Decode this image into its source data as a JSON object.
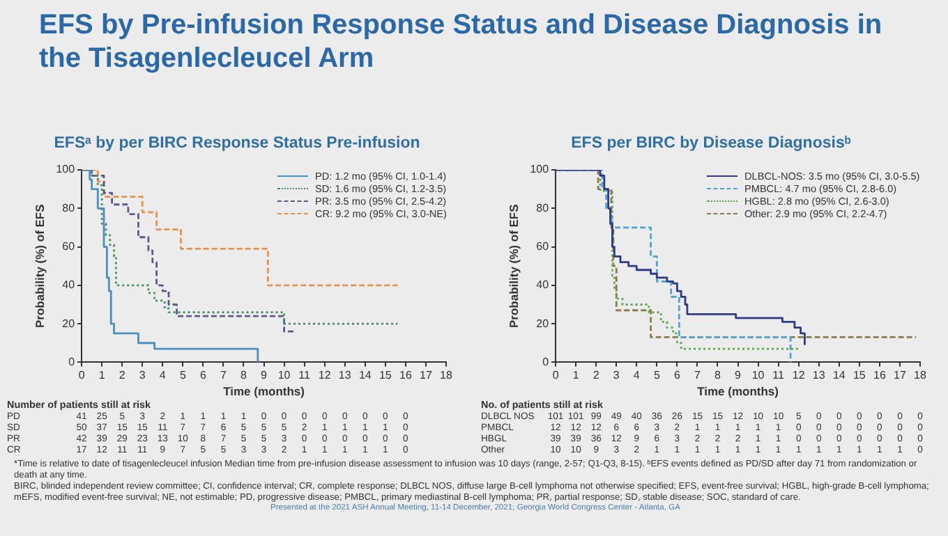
{
  "chart_data": [
    {
      "type": "step",
      "title": "EFS by Pre-infusion Response Status and Disease Diagnosis in the Tisagenlecleucel Arm",
      "subtitle": "EFSᵃ by per BIRC Response Status Pre-infusion",
      "xlabel": "Time (months)",
      "ylabel": "Probability (%) of EFS",
      "xlim": [
        0,
        18
      ],
      "xticks": [
        0,
        1,
        2,
        3,
        4,
        5,
        6,
        7,
        8,
        9,
        10,
        11,
        12,
        13,
        14,
        15,
        16,
        17,
        18
      ],
      "ylim": [
        0,
        100
      ],
      "yticks": [
        0,
        20,
        40,
        60,
        80,
        100
      ],
      "legend": "top right",
      "series": [
        {
          "name": "PD: 1.2 mo (95% CI, 1.0-1.4)",
          "color": "#4a8ec2",
          "line_style": "solid",
          "x": [
            0,
            0.4,
            0.5,
            0.8,
            1.1,
            1.25,
            1.35,
            1.45,
            1.6,
            2.8,
            3.6,
            8.7
          ],
          "values": [
            100,
            95,
            90,
            80,
            60,
            44,
            37,
            20,
            15,
            10,
            7,
            0
          ]
        },
        {
          "name": "SD: 1.6 mo (95% CI, 1.2-3.5)",
          "color": "#3f8f5f",
          "line_style": "dotted",
          "x": [
            0,
            0.5,
            0.8,
            1.0,
            1.2,
            1.4,
            1.6,
            1.7,
            3.3,
            3.6,
            4.1,
            4.3,
            10.0,
            15.6
          ],
          "values": [
            100,
            97,
            92,
            72,
            66,
            61,
            55,
            40,
            36,
            32,
            28,
            26,
            20,
            20
          ]
        },
        {
          "name": "PR: 3.5 mo (95% CI, 2.5-4.2)",
          "color": "#5a5a8a",
          "line_style": "dashed",
          "x": [
            0,
            0.5,
            1.1,
            1.5,
            2.3,
            2.8,
            3.3,
            3.5,
            3.7,
            4.0,
            4.3,
            4.7,
            10.0,
            10.5
          ],
          "values": [
            100,
            97,
            88,
            82,
            77,
            65,
            58,
            52,
            40,
            37,
            30,
            24,
            16,
            16
          ]
        },
        {
          "name": "CR: 9.2 mo (95% CI, 3.0-NE)",
          "color": "#e8914a",
          "line_style": "dashed",
          "x": [
            0,
            0.8,
            1.1,
            3.0,
            3.7,
            4.9,
            9.2,
            15.6
          ],
          "values": [
            100,
            94,
            86,
            78,
            69,
            59,
            40,
            40
          ]
        }
      ],
      "annotations": [
        "Number of patients still at risk",
        "PD 41 25 5 3 2 1 1 1 1 0 0 0 0 0 0 0 0",
        "SD 50 37 15 15 11 7 7 6 5 5 5 2 1 1 1 1 0",
        "PR 42 39 29 23 13 10 8 7 5 5 3 0 0 0 0 0 0",
        "CR 17 12 11 11 9 7 5 5 3 3 2 1 1 1 1 1 0"
      ]
    },
    {
      "type": "step",
      "title": "EFS per BIRC by Disease Diagnosisᵇ",
      "xlabel": "Time (months)",
      "ylabel": "Probability (%) of EFS",
      "xlim": [
        0,
        18
      ],
      "xticks": [
        0,
        1,
        2,
        3,
        4,
        5,
        6,
        7,
        8,
        9,
        10,
        11,
        12,
        13,
        14,
        15,
        16,
        17,
        18
      ],
      "ylim": [
        0,
        100
      ],
      "yticks": [
        0,
        20,
        40,
        60,
        80,
        100
      ],
      "legend": "top right",
      "series": [
        {
          "name": "DLBCL-NOS: 3.5 mo (95% CI, 3.0-5.5)",
          "color": "#2e3a87",
          "line_style": "solid",
          "x": [
            0,
            2.2,
            2.4,
            2.6,
            2.7,
            2.8,
            2.9,
            3.2,
            3.6,
            4.0,
            4.7,
            5.0,
            5.5,
            5.8,
            6.0,
            6.2,
            6.4,
            6.5,
            8.9,
            11.2,
            11.8,
            12.1,
            12.3
          ],
          "values": [
            100,
            97,
            90,
            80,
            72,
            60,
            55,
            52,
            50,
            48,
            46,
            44,
            42,
            41,
            37,
            34,
            30,
            25,
            23,
            21,
            18,
            15,
            9
          ]
        },
        {
          "name": "PMBCL: 4.7 mo (95% CI, 2.8-6.0)",
          "color": "#4fa3d1",
          "line_style": "dashed",
          "x": [
            0,
            2.3,
            2.5,
            2.7,
            2.8,
            4.7,
            5.0,
            5.7,
            6.1,
            11.6
          ],
          "values": [
            100,
            90,
            80,
            75,
            70,
            55,
            42,
            34,
            13,
            0
          ]
        },
        {
          "name": "HGBL: 2.8 mo (95% CI, 2.6-3.0)",
          "color": "#5aa84a",
          "line_style": "dotted",
          "x": [
            0,
            2.2,
            2.8,
            2.9,
            3.0,
            3.3,
            4.6,
            5.2,
            5.5,
            5.8,
            6.0,
            6.2,
            12.1
          ],
          "values": [
            100,
            89,
            45,
            38,
            33,
            30,
            26,
            21,
            18,
            15,
            10,
            7,
            7
          ]
        },
        {
          "name": "Other: 2.9 mo (95% CI, 2.2-4.7)",
          "color": "#8b7a4a",
          "line_style": "dashed",
          "x": [
            0,
            2.1,
            2.75,
            2.85,
            3.0,
            4.7,
            17.8
          ],
          "values": [
            100,
            90,
            70,
            50,
            27,
            13,
            13
          ]
        }
      ],
      "annotations": [
        "No. of patients still at risk",
        "DLBCL NOS 101 101 99 49 40 36 26 15 15 12 10 10 5 0 0 0 0 0 0",
        "PMBCL 12 12 12 6 6 3 2 1 1 1 1 1 0 0 0 0 0 0 0",
        "HBGL 39 39 36 12 9 6 3 2 2 2 1 1 0 0 0 0 0 0 0",
        "Other 10 10 9 3 2 1 1 1 1 1 1 1 1 1 1 1 1 1 0",
        "*Time is relative to date of tisagenlecleucel infusion Median time from pre-infusion disease assessment to infusion was 10 days (range, 2-57; Q1-Q3, 8-15). ᵇEFS events defined as PD/SD after day 71 from randomization or death at any time.",
        "BIRC, blinded independent review committee; CI, confidence interval; CR, complete response; DLBCL NOS, diffuse large B-cell lymphoma not otherwise specified; EFS, event-free survival; HGBL, high-grade B-cell lymphoma; mEFS, modified event-free survival; NE, not estimable; PD, progressive disease; PMBCL, primary mediastinal B-cell lymphoma; PR, partial response; SD, stable disease; SOC, standard of care.",
        "Presented at the 2021 ASH Annual Meeting, 11-14 December, 2021; Georgia World Congress Center - Atlanta, GA"
      ]
    }
  ]
}
